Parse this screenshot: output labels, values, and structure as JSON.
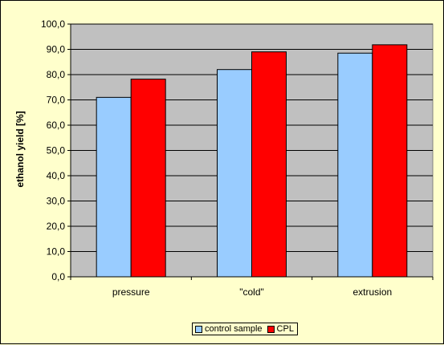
{
  "chart_data": {
    "type": "bar",
    "categories": [
      "pressure",
      "\"cold\"",
      "extrusion"
    ],
    "series": [
      {
        "name": "control sample",
        "values": [
          71.0,
          82.0,
          88.5
        ],
        "color": "#99ccff"
      },
      {
        "name": "CPL",
        "values": [
          78.2,
          89.0,
          91.8
        ],
        "color": "#ff0000"
      }
    ],
    "ylabel": "ethanol yield [%]",
    "ylim": [
      0,
      100
    ],
    "yticks": [
      "0,0",
      "10,0",
      "20,0",
      "30,0",
      "40,0",
      "50,0",
      "60,0",
      "70,0",
      "80,0",
      "90,0",
      "100,0"
    ],
    "grid": true,
    "legend_position": "bottom",
    "plot_background": "#c0c0c0",
    "page_background": "#ffffcc"
  }
}
